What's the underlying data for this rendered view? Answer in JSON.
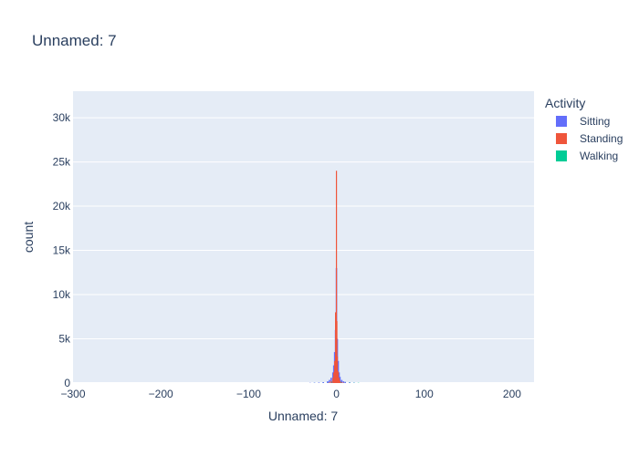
{
  "chart_data": {
    "type": "bar",
    "title": "Unnamed: 7",
    "xlabel": "Unnamed: 7",
    "ylabel": "count",
    "xlim": [
      -300,
      225
    ],
    "ylim": [
      0,
      33000
    ],
    "x_ticks": [
      -300,
      -200,
      -100,
      0,
      100,
      200
    ],
    "x_tick_labels": [
      "−300",
      "−200",
      "−100",
      "0",
      "100",
      "200"
    ],
    "y_ticks": [
      0,
      5000,
      10000,
      15000,
      20000,
      25000,
      30000
    ],
    "y_tick_labels": [
      "0",
      "5k",
      "10k",
      "15k",
      "20k",
      "25k",
      "30k"
    ],
    "grid": true,
    "plot_background": "#e5ecf6",
    "legend": {
      "title": "Activity",
      "placement": "right"
    },
    "series": [
      {
        "name": "Sitting",
        "color": "#636efa",
        "x": [
          -30,
          -25,
          -20,
          -15,
          -10,
          -8,
          -6,
          -4,
          -3,
          -2,
          -1,
          0,
          1,
          2,
          3,
          4,
          6,
          8,
          10,
          15,
          20
        ],
        "values": [
          30,
          40,
          60,
          100,
          200,
          350,
          600,
          1200,
          2000,
          3500,
          6000,
          13000,
          5000,
          2500,
          1200,
          700,
          350,
          200,
          120,
          60,
          30
        ]
      },
      {
        "name": "Standing",
        "color": "#ef553b",
        "x": [
          -8,
          -6,
          -4,
          -3,
          -2,
          -1,
          0,
          0.5,
          1,
          2,
          3,
          4,
          6,
          8
        ],
        "values": [
          100,
          250,
          600,
          1200,
          2500,
          8000,
          24000,
          7000,
          3000,
          1300,
          600,
          250,
          120,
          50
        ]
      },
      {
        "name": "Walking",
        "color": "#00cc96",
        "x": [
          -25,
          -20,
          -15,
          -10,
          -5,
          0,
          5,
          10,
          15,
          20,
          25
        ],
        "values": [
          30,
          50,
          80,
          120,
          180,
          220,
          180,
          120,
          80,
          50,
          30
        ]
      }
    ]
  }
}
